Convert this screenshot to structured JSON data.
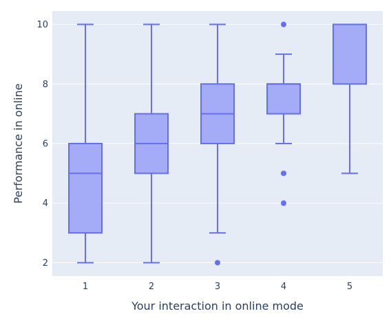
{
  "chart_data": {
    "type": "box",
    "xlabel": "Your interaction in online mode",
    "ylabel": "Performance in online",
    "ylim": [
      1.55,
      10.45
    ],
    "yticks": [
      2,
      4,
      6,
      8,
      10
    ],
    "grid": true,
    "categories": [
      "1",
      "2",
      "3",
      "4",
      "5"
    ],
    "boxes": [
      {
        "category": "1",
        "min": 2,
        "q1": 3,
        "median": 5,
        "q3": 6,
        "max": 10,
        "outliers": []
      },
      {
        "category": "2",
        "min": 2,
        "q1": 5,
        "median": 6,
        "q3": 7,
        "max": 10,
        "outliers": []
      },
      {
        "category": "3",
        "min": 3,
        "q1": 6,
        "median": 7,
        "q3": 8,
        "max": 10,
        "outliers": [
          2
        ]
      },
      {
        "category": "4",
        "min": 6,
        "q1": 7,
        "median": 8,
        "q3": 8,
        "max": 9,
        "outliers": [
          4,
          5,
          10
        ]
      },
      {
        "category": "5",
        "min": 5,
        "q1": 8,
        "median": 10,
        "q3": 10,
        "max": 10,
        "outliers": []
      }
    ],
    "colors": {
      "plot_background": "#e5ecf6",
      "grid": "#ffffff",
      "box_line": "#636efa",
      "box_fill": "#a4abf7",
      "text": "#2a3f5f"
    }
  }
}
